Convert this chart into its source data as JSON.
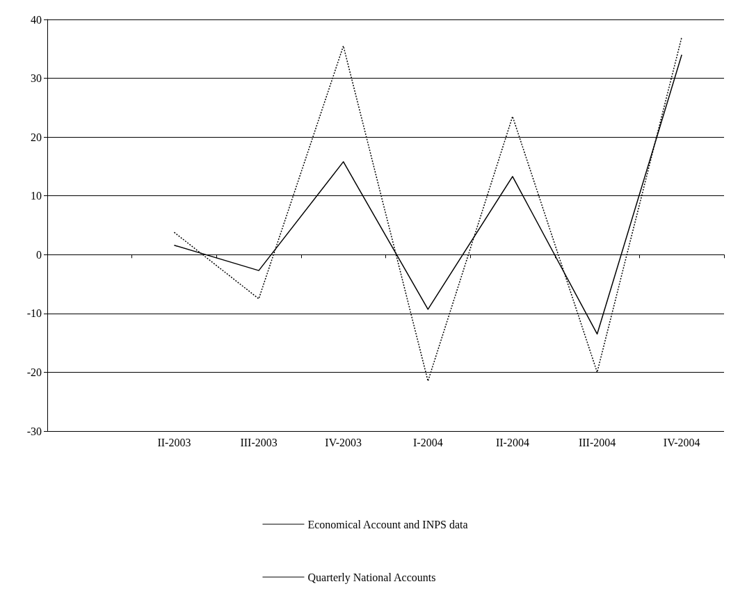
{
  "chart_data": {
    "type": "line",
    "categories": [
      null,
      "II-2003",
      "III-2003",
      "IV-2003",
      "I-2004",
      "II-2004",
      "III-2004",
      "IV-2004"
    ],
    "series": [
      {
        "name": "Economical Account and INPS data",
        "color": "#000000",
        "line_style": "solid",
        "values": [
          null,
          1.6,
          -2.7,
          15.8,
          -9.3,
          13.3,
          -13.5,
          34
        ]
      },
      {
        "name": "Quarterly National Accounts",
        "color": "#000000",
        "line_style": "dotted",
        "values": [
          null,
          3.8,
          -7.5,
          35.5,
          -21.5,
          23.5,
          -20,
          37
        ]
      }
    ],
    "ylim": [
      -30,
      40
    ],
    "yticks": [
      -30,
      -20,
      -10,
      0,
      10,
      20,
      30,
      40
    ],
    "grid": "y",
    "legend": "bottom",
    "marker": "none"
  }
}
